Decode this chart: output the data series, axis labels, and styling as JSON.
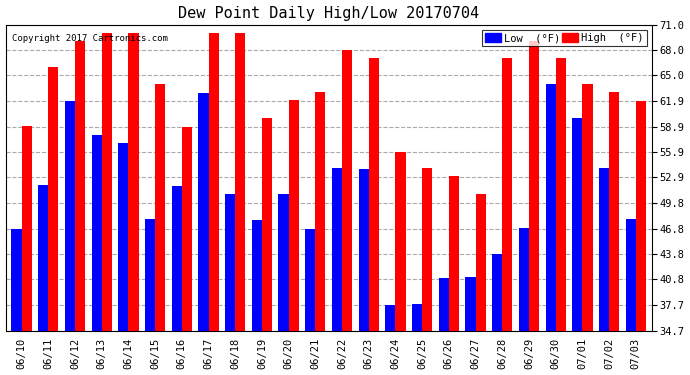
{
  "title": "Dew Point Daily High/Low 20170704",
  "copyright": "Copyright 2017 Cartronics.com",
  "dates": [
    "06/10",
    "06/11",
    "06/12",
    "06/13",
    "06/14",
    "06/15",
    "06/16",
    "06/17",
    "06/18",
    "06/19",
    "06/20",
    "06/21",
    "06/22",
    "06/23",
    "06/24",
    "06/25",
    "06/26",
    "06/27",
    "06/28",
    "06/29",
    "06/30",
    "07/01",
    "07/02",
    "07/03"
  ],
  "low": [
    46.8,
    52.0,
    61.9,
    57.9,
    56.9,
    47.9,
    51.9,
    62.9,
    50.9,
    47.8,
    50.9,
    46.8,
    54.0,
    53.9,
    37.7,
    37.9,
    40.9,
    41.0,
    43.8,
    46.9,
    64.0,
    59.9,
    54.0,
    47.9
  ],
  "high": [
    59.0,
    65.9,
    69.1,
    70.0,
    70.0,
    64.0,
    58.9,
    70.0,
    70.0,
    59.9,
    62.0,
    63.0,
    68.0,
    67.0,
    55.9,
    54.0,
    53.0,
    50.9,
    67.0,
    69.1,
    67.0,
    64.0,
    63.0,
    61.9
  ],
  "ylim_min": 34.7,
  "ylim_max": 71.0,
  "yticks": [
    34.7,
    37.7,
    40.8,
    43.8,
    46.8,
    49.8,
    52.9,
    55.9,
    58.9,
    61.9,
    65.0,
    68.0,
    71.0
  ],
  "bar_width": 0.38,
  "low_color": "#0000ff",
  "high_color": "#ff0000",
  "bg_color": "#ffffff",
  "grid_color": "#aaaaaa",
  "title_fontsize": 11,
  "legend_low_label": "Low  (°F)",
  "legend_high_label": "High  (°F)"
}
